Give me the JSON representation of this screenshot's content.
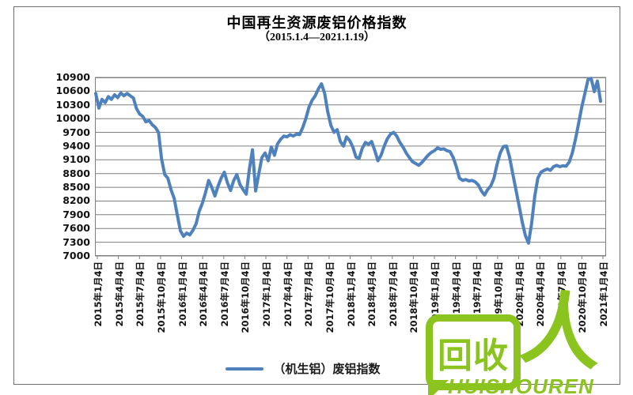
{
  "title": "中国再生资源废铝价格指数",
  "subtitle": "（2015.1.4—2021.1.19）",
  "legend": {
    "label": "（机生铝）废铝指数"
  },
  "watermark": {
    "bubble_text": "回收",
    "person_char": "人",
    "brand": "HUISHOUREN",
    "color": "#8BC41F"
  },
  "colors": {
    "line": "#4F81BD",
    "grid": "#7F7F7F",
    "frame": "#707070",
    "text": "#000000"
  },
  "chart_data": {
    "type": "line",
    "title": "中国再生资源废铝价格指数",
    "subtitle": "（2015.1.4—2021.1.19）",
    "x_range": "2015-01-04 — 2021-01-19",
    "x_frequency": "weekly (approx., rendered biweekly)",
    "ylim": [
      7000,
      10900
    ],
    "y_ticks": [
      10900,
      10600,
      10300,
      10000,
      9700,
      9400,
      9100,
      8800,
      8500,
      8200,
      7900,
      7600,
      7300,
      7000
    ],
    "grid": true,
    "legend_position": "bottom",
    "x_tick_labels": [
      "2015年1月4日",
      "2015年4月4日",
      "2015年7月4日",
      "2015年10月4日",
      "2016年1月4日",
      "2016年4月4日",
      "2016年7月4日",
      "2016年10月4日",
      "2017年1月4日",
      "2017年4月4日",
      "2017年7月4日",
      "2017年10月4日",
      "2018年1月4日",
      "2018年4月4日",
      "2018年7月4日",
      "2018年10月4日",
      "2019年1月4日",
      "2019年4月4日",
      "2019年7月4日",
      "2019年10月4日",
      "2020年1月4日",
      "2020年4月4日",
      "2020年7月4日",
      "2020年10月4日",
      "2021年1月4日"
    ],
    "series": [
      {
        "name": "（机生铝）废铝指数",
        "color": "#4F81BD",
        "values": [
          10550,
          10230,
          10420,
          10350,
          10480,
          10420,
          10520,
          10460,
          10560,
          10500,
          10550,
          10500,
          10450,
          10220,
          10100,
          10050,
          9930,
          9960,
          9870,
          9810,
          9700,
          9120,
          8780,
          8700,
          8450,
          8260,
          7900,
          7550,
          7430,
          7500,
          7460,
          7560,
          7700,
          7980,
          8150,
          8380,
          8650,
          8500,
          8310,
          8520,
          8700,
          8830,
          8600,
          8430,
          8650,
          8780,
          8560,
          8450,
          8350,
          8900,
          9320,
          8420,
          8800,
          9150,
          9250,
          9080,
          9380,
          9200,
          9450,
          9550,
          9620,
          9600,
          9650,
          9620,
          9660,
          9650,
          9800,
          10000,
          10250,
          10400,
          10500,
          10650,
          10760,
          10550,
          10150,
          9850,
          9700,
          9760,
          9500,
          9400,
          9600,
          9520,
          9380,
          9160,
          9130,
          9350,
          9480,
          9440,
          9500,
          9300,
          9080,
          9200,
          9400,
          9560,
          9660,
          9700,
          9620,
          9480,
          9380,
          9250,
          9150,
          9060,
          9020,
          8980,
          9040,
          9120,
          9200,
          9260,
          9300,
          9360,
          9330,
          9340,
          9300,
          9280,
          9150,
          8950,
          8700,
          8650,
          8670,
          8640,
          8650,
          8620,
          8550,
          8420,
          8330,
          8450,
          8530,
          8700,
          9000,
          9250,
          9390,
          9400,
          9150,
          8800,
          8450,
          8100,
          7750,
          7450,
          7280,
          7700,
          8300,
          8700,
          8830,
          8870,
          8900,
          8870,
          8950,
          8980,
          8950,
          8970,
          8960,
          9050,
          9250,
          9550,
          9900,
          10250,
          10550,
          10850,
          10880,
          10590,
          10820,
          10380
        ]
      }
    ]
  }
}
